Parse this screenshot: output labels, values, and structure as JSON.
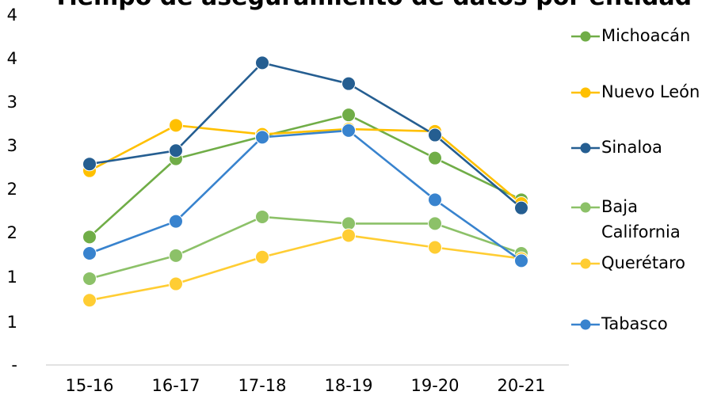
{
  "chart_data": {
    "type": "line",
    "title": "Tiempo de aseguramiento de datos por entidad",
    "xlabel": "",
    "ylabel": "",
    "categories": [
      "15-16",
      "16-17",
      "17-18",
      "18-19",
      "19-20",
      "20-21"
    ],
    "y_tick_labels": [
      "-",
      "1",
      "1",
      "2",
      "2",
      "3",
      "3",
      "4",
      "4"
    ],
    "ylim": [
      0,
      4.2
    ],
    "grid": false,
    "legend_position": "right",
    "series": [
      {
        "name": "Michoacán",
        "color": "#70AD47",
        "values": [
          1.72,
          2.77,
          3.07,
          3.36,
          2.78,
          2.22
        ]
      },
      {
        "name": "Nuevo León",
        "color": "#FFC000",
        "values": [
          2.61,
          3.22,
          3.1,
          3.17,
          3.14,
          2.17
        ]
      },
      {
        "name": "Sinaloa",
        "color": "#255E91",
        "values": [
          2.7,
          2.88,
          4.06,
          3.78,
          3.09,
          2.11
        ]
      },
      {
        "name": "Baja California",
        "color": "#8CC168",
        "values": [
          1.16,
          1.47,
          1.99,
          1.9,
          1.9,
          1.5
        ]
      },
      {
        "name": "Querétaro",
        "color": "#FFCD33",
        "values": [
          0.87,
          1.09,
          1.45,
          1.74,
          1.58,
          1.43
        ]
      },
      {
        "name": "Tabasco",
        "color": "#3883CE",
        "values": [
          1.5,
          1.93,
          3.06,
          3.15,
          2.22,
          1.4
        ]
      }
    ]
  }
}
